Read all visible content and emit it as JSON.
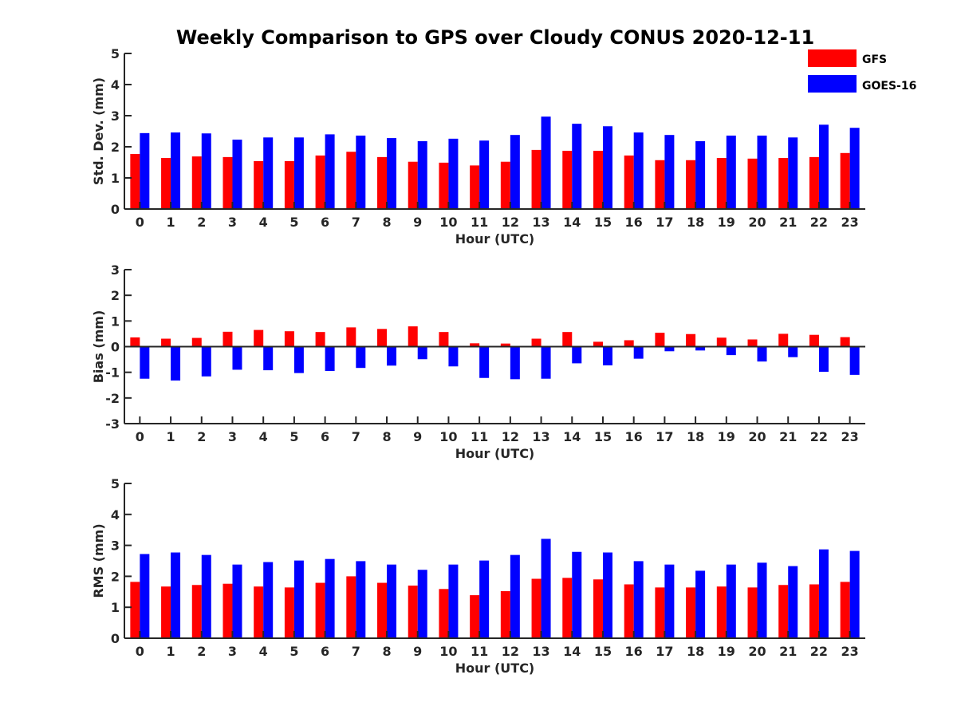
{
  "title": "Weekly Comparison to GPS over Cloudy CONUS 2020-12-11",
  "colors": {
    "GFS": "#ff0000",
    "GOES-16": "#0000ff"
  },
  "legend": {
    "position": "top-right",
    "entries": [
      "GFS",
      "GOES-16"
    ]
  },
  "chart_data": [
    {
      "type": "bar",
      "ylabel": "Std. Dev. (mm)",
      "xlabel": "Hour (UTC)",
      "ylim": [
        0,
        5
      ],
      "yticks": [
        0,
        1,
        2,
        3,
        4,
        5
      ],
      "categories": [
        "0",
        "1",
        "2",
        "3",
        "4",
        "5",
        "6",
        "7",
        "8",
        "9",
        "10",
        "11",
        "12",
        "13",
        "14",
        "15",
        "16",
        "17",
        "18",
        "19",
        "20",
        "21",
        "22",
        "23"
      ],
      "series": [
        {
          "name": "GFS",
          "values": [
            1.77,
            1.64,
            1.69,
            1.67,
            1.54,
            1.54,
            1.72,
            1.84,
            1.67,
            1.52,
            1.49,
            1.4,
            1.52,
            1.9,
            1.87,
            1.87,
            1.72,
            1.57,
            1.57,
            1.64,
            1.62,
            1.64,
            1.67,
            1.8
          ]
        },
        {
          "name": "GOES-16",
          "values": [
            2.44,
            2.46,
            2.43,
            2.23,
            2.3,
            2.3,
            2.4,
            2.36,
            2.28,
            2.18,
            2.26,
            2.2,
            2.38,
            2.97,
            2.74,
            2.66,
            2.46,
            2.38,
            2.18,
            2.36,
            2.36,
            2.3,
            2.71,
            2.61
          ]
        }
      ]
    },
    {
      "type": "bar",
      "ylabel": "Bias (mm)",
      "xlabel": "Hour (UTC)",
      "ylim": [
        -3,
        3
      ],
      "yticks": [
        -3,
        -2,
        -1,
        0,
        1,
        2,
        3
      ],
      "categories": [
        "0",
        "1",
        "2",
        "3",
        "4",
        "5",
        "6",
        "7",
        "8",
        "9",
        "10",
        "11",
        "12",
        "13",
        "14",
        "15",
        "16",
        "17",
        "18",
        "19",
        "20",
        "21",
        "22",
        "23"
      ],
      "series": [
        {
          "name": "GFS",
          "values": [
            0.36,
            0.31,
            0.34,
            0.58,
            0.65,
            0.6,
            0.57,
            0.75,
            0.69,
            0.79,
            0.57,
            0.13,
            0.12,
            0.31,
            0.57,
            0.19,
            0.25,
            0.54,
            0.49,
            0.35,
            0.28,
            0.5,
            0.46,
            0.37
          ]
        },
        {
          "name": "GOES-16",
          "values": [
            -1.25,
            -1.32,
            -1.16,
            -0.9,
            -0.92,
            -1.03,
            -0.95,
            -0.83,
            -0.74,
            -0.49,
            -0.77,
            -1.22,
            -1.27,
            -1.25,
            -0.65,
            -0.73,
            -0.47,
            -0.18,
            -0.15,
            -0.33,
            -0.58,
            -0.41,
            -0.98,
            -1.1
          ]
        }
      ]
    },
    {
      "type": "bar",
      "ylabel": "RMS (mm)",
      "xlabel": "Hour (UTC)",
      "ylim": [
        0,
        5
      ],
      "yticks": [
        0,
        1,
        2,
        3,
        4,
        5
      ],
      "categories": [
        "0",
        "1",
        "2",
        "3",
        "4",
        "5",
        "6",
        "7",
        "8",
        "9",
        "10",
        "11",
        "12",
        "13",
        "14",
        "15",
        "16",
        "17",
        "18",
        "19",
        "20",
        "21",
        "22",
        "23"
      ],
      "series": [
        {
          "name": "GFS",
          "values": [
            1.82,
            1.67,
            1.72,
            1.76,
            1.67,
            1.64,
            1.79,
            2.0,
            1.79,
            1.7,
            1.59,
            1.39,
            1.52,
            1.92,
            1.95,
            1.9,
            1.74,
            1.64,
            1.64,
            1.67,
            1.64,
            1.72,
            1.74,
            1.82
          ]
        },
        {
          "name": "GOES-16",
          "values": [
            2.72,
            2.77,
            2.69,
            2.38,
            2.46,
            2.51,
            2.56,
            2.49,
            2.38,
            2.21,
            2.38,
            2.51,
            2.69,
            3.21,
            2.79,
            2.77,
            2.49,
            2.38,
            2.18,
            2.38,
            2.44,
            2.33,
            2.87,
            2.82
          ]
        }
      ]
    }
  ]
}
